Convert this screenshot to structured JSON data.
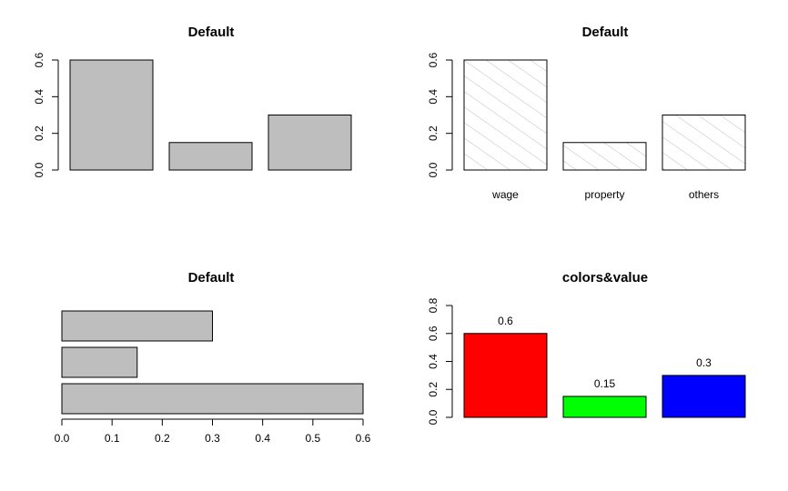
{
  "chart_data": [
    {
      "type": "bar",
      "orientation": "vertical",
      "title": "Default",
      "categories": [
        "",
        "",
        ""
      ],
      "values": [
        0.6,
        0.15,
        0.3
      ],
      "fill": "#bebebe",
      "ylim": [
        0,
        0.6
      ],
      "yticks": [
        "0.0",
        "0.2",
        "0.4",
        "0.6"
      ],
      "show_category_labels": false,
      "show_value_labels": false,
      "hatched": false,
      "xlabel": "",
      "ylabel": ""
    },
    {
      "type": "bar",
      "orientation": "vertical",
      "title": "Default",
      "categories": [
        "wage",
        "property",
        "others"
      ],
      "values": [
        0.6,
        0.15,
        0.3
      ],
      "fill": "#ffffff",
      "hatch_color": "#bebebe",
      "ylim": [
        0,
        0.6
      ],
      "yticks": [
        "0.0",
        "0.2",
        "0.4",
        "0.6"
      ],
      "show_category_labels": true,
      "show_value_labels": false,
      "hatched": true,
      "xlabel": "",
      "ylabel": ""
    },
    {
      "type": "bar",
      "orientation": "horizontal",
      "title": "Default",
      "categories": [
        "",
        "",
        ""
      ],
      "values": [
        0.6,
        0.15,
        0.3
      ],
      "fill": "#bebebe",
      "xlim": [
        0,
        0.6
      ],
      "xticks": [
        "0.0",
        "0.1",
        "0.2",
        "0.3",
        "0.4",
        "0.5",
        "0.6"
      ],
      "show_category_labels": false,
      "show_value_labels": false,
      "hatched": false,
      "xlabel": "",
      "ylabel": ""
    },
    {
      "type": "bar",
      "orientation": "vertical",
      "title": "colors&value",
      "categories": [
        "",
        "",
        ""
      ],
      "values": [
        0.6,
        0.15,
        0.3
      ],
      "value_labels": [
        "0.6",
        "0.15",
        "0.3"
      ],
      "colors": [
        "#ff0000",
        "#00ff00",
        "#0000ff"
      ],
      "ylim": [
        0,
        0.8
      ],
      "yticks": [
        "0.0",
        "0.2",
        "0.4",
        "0.6",
        "0.8"
      ],
      "show_category_labels": false,
      "show_value_labels": true,
      "hatched": false,
      "xlabel": "",
      "ylabel": ""
    }
  ]
}
